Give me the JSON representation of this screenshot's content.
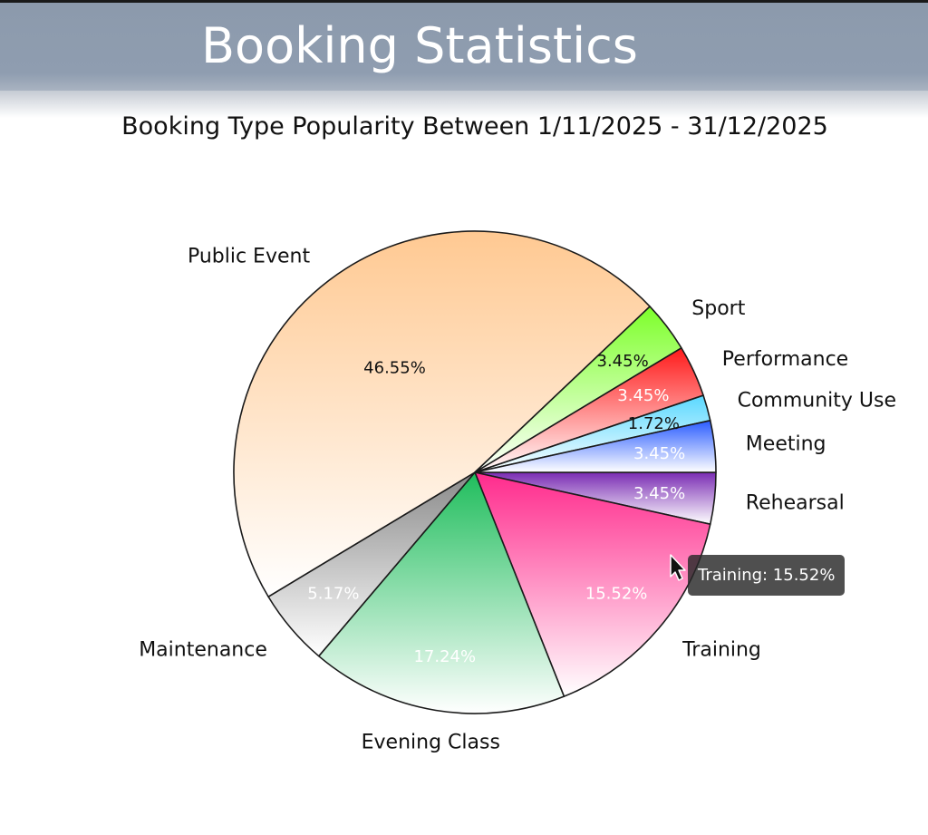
{
  "header": {
    "title": "Booking Statistics"
  },
  "chart_data": {
    "type": "pie",
    "title": "Booking Type Popularity Between 1/11/2025 - 31/12/2025",
    "slices": [
      {
        "label": "Rehearsal",
        "value": 3.45,
        "value_label": "3.45%",
        "color_top": "#7a2cb3",
        "color_bottom": "#ffffff",
        "text_color": "#ffffff"
      },
      {
        "label": "Training",
        "value": 15.52,
        "value_label": "15.52%",
        "color_top": "#ff2a8c",
        "color_bottom": "#ffffff",
        "text_color": "#ffffff"
      },
      {
        "label": "Evening Class",
        "value": 17.24,
        "value_label": "17.24%",
        "color_top": "#1fbd5c",
        "color_bottom": "#ffffff",
        "text_color": "#ffffff"
      },
      {
        "label": "Maintenance",
        "value": 5.17,
        "value_label": "5.17%",
        "color_top": "#8a8a8a",
        "color_bottom": "#ffffff",
        "text_color": "#ffffff"
      },
      {
        "label": "Public Event",
        "value": 46.55,
        "value_label": "46.55%",
        "color_top": "#ffc992",
        "color_bottom": "#ffffff",
        "text_color": "#111111"
      },
      {
        "label": "Sport",
        "value": 3.45,
        "value_label": "3.45%",
        "color_top": "#7dff2a",
        "color_bottom": "#ffffff",
        "text_color": "#111111"
      },
      {
        "label": "Performance",
        "value": 3.45,
        "value_label": "3.45%",
        "color_top": "#ff1a1a",
        "color_bottom": "#ffffff",
        "text_color": "#ffffff"
      },
      {
        "label": "Community Use",
        "value": 1.72,
        "value_label": "1.72%",
        "color_top": "#5ad8ff",
        "color_bottom": "#ffffff",
        "text_color": "#111111"
      },
      {
        "label": "Meeting",
        "value": 3.45,
        "value_label": "3.45%",
        "color_top": "#2a5cff",
        "color_bottom": "#ffffff",
        "text_color": "#ffffff"
      }
    ]
  },
  "tooltip": {
    "text": "Training: 15.52%"
  },
  "cursor": {
    "icon": "mouse-pointer-icon"
  }
}
